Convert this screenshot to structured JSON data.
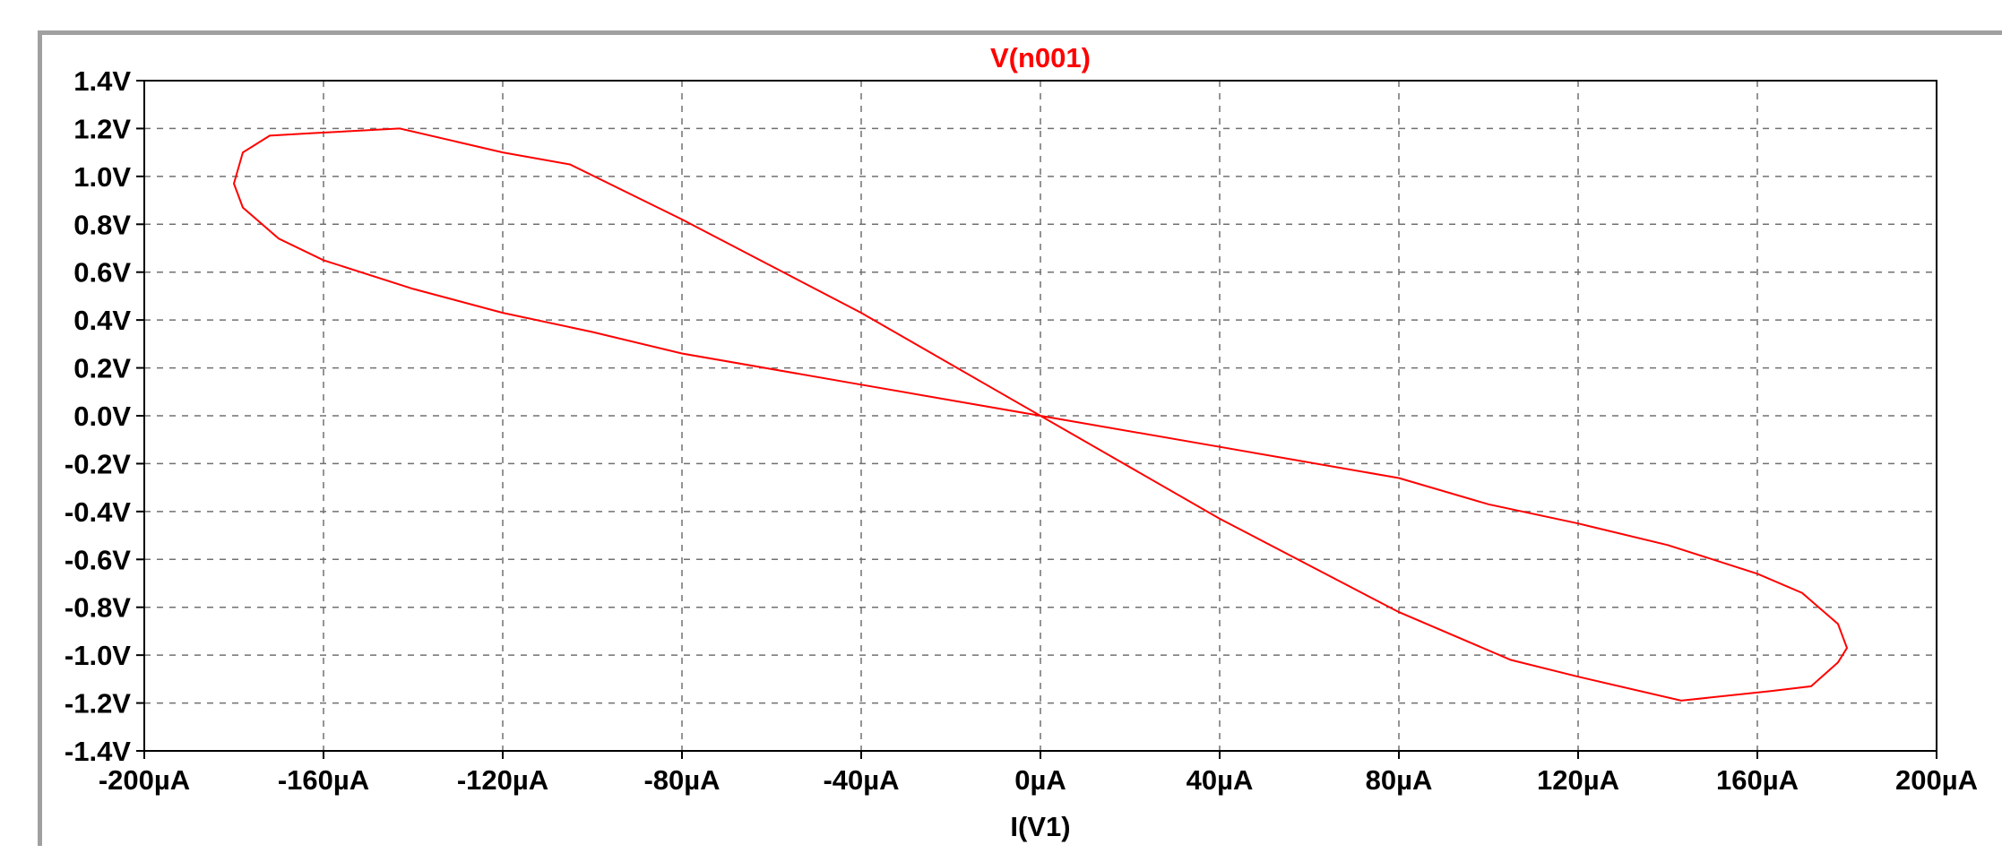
{
  "chart_data": {
    "type": "line",
    "title": "V(n001)",
    "xlabel": "I(V1)",
    "ylabel": "",
    "xlim": [
      -200,
      200
    ],
    "ylim": [
      -1.4,
      1.4
    ],
    "x_ticks": [
      "-200µA",
      "-160µA",
      "-120µA",
      "-80µA",
      "-40µA",
      "0µA",
      "40µA",
      "80µA",
      "120µA",
      "160µA",
      "200µA"
    ],
    "y_ticks": [
      "1.4V",
      "1.2V",
      "1.0V",
      "0.8V",
      "0.6V",
      "0.4V",
      "0.2V",
      "0.0V",
      "-0.2V",
      "-0.4V",
      "-0.6V",
      "-0.8V",
      "-1.0V",
      "-1.2V",
      "-1.4V"
    ],
    "x_tick_values": [
      -200,
      -160,
      -120,
      -80,
      -40,
      0,
      40,
      80,
      120,
      160,
      200
    ],
    "y_tick_values": [
      1.4,
      1.2,
      1.0,
      0.8,
      0.6,
      0.4,
      0.2,
      0.0,
      -0.2,
      -0.4,
      -0.6,
      -0.8,
      -1.0,
      -1.2,
      -1.4
    ],
    "grid": true,
    "series": [
      {
        "color": "#ff0000",
        "x": [
          0,
          40,
          80,
          105,
          120,
          143,
          163,
          172,
          178,
          180,
          178,
          170,
          160,
          140,
          120,
          100,
          80,
          40,
          0,
          -40,
          -80,
          -105,
          -120,
          -143,
          -163,
          -172,
          -178,
          -180,
          -178,
          -170,
          -160,
          -140,
          -120,
          -100,
          -80,
          -40,
          0
        ],
        "y": [
          0.0,
          -0.43,
          -0.82,
          -1.02,
          -1.09,
          -1.19,
          -1.15,
          -1.13,
          -1.03,
          -0.97,
          -0.87,
          -0.74,
          -0.66,
          -0.54,
          -0.45,
          -0.37,
          -0.26,
          -0.13,
          0.0,
          0.43,
          0.82,
          1.05,
          1.1,
          1.2,
          1.18,
          1.17,
          1.1,
          0.97,
          0.87,
          0.74,
          0.65,
          0.53,
          0.43,
          0.35,
          0.26,
          0.13,
          0.0
        ]
      }
    ]
  }
}
